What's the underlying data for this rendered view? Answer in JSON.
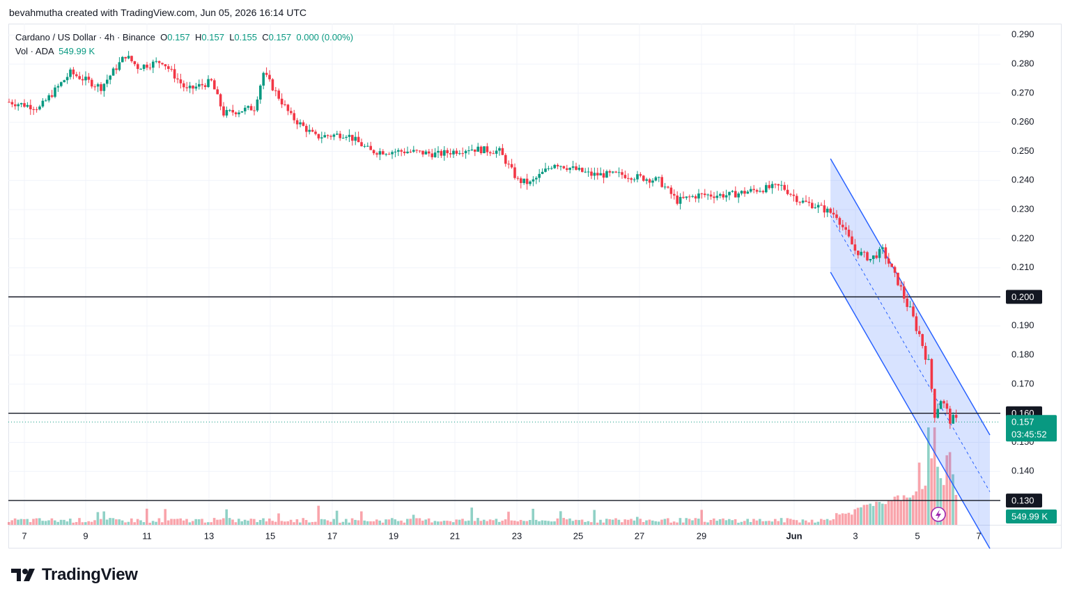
{
  "header": {
    "credit": "bevahmutha created with TradingView.com, Jun 05, 2026 16:14 UTC"
  },
  "legend": {
    "symbol": "Cardano / US Dollar · 4h · Binance",
    "o_label": "O",
    "o_value": "0.157",
    "h_label": "H",
    "h_value": "0.157",
    "l_label": "L",
    "l_value": "0.155",
    "c_label": "C",
    "c_value": "0.157",
    "change": "0.000 (0.00%)",
    "vol_label": "Vol · ADA",
    "vol_value": "549.99 K"
  },
  "price_axis": {
    "labels": [
      "0.290",
      "0.280",
      "0.270",
      "0.260",
      "0.250",
      "0.240",
      "0.230",
      "0.220",
      "0.210",
      "0.190",
      "0.180",
      "0.170",
      "0.140"
    ],
    "partial_label": "0.150"
  },
  "time_axis": {
    "labels": [
      "7",
      "9",
      "11",
      "13",
      "15",
      "17",
      "19",
      "21",
      "23",
      "25",
      "27",
      "29",
      "Jun",
      "3",
      "5",
      "7"
    ]
  },
  "horizontal_levels": [
    {
      "price": 0.2,
      "label": "0.200"
    },
    {
      "price": 0.16,
      "label": "0.160"
    },
    {
      "price": 0.13,
      "label": "0.130"
    }
  ],
  "current_price": {
    "price": 0.157,
    "label": "0.157",
    "countdown": "03:45:52"
  },
  "volume_badge": "549.99 K",
  "brand": {
    "name": "TradingView",
    "logo": "tradingview-logo-icon"
  },
  "colors": {
    "up": "#089981",
    "down": "#f23645",
    "channel": "#2962ff",
    "channel_fill": "rgba(41,98,255,0.18)",
    "level": "#131722"
  },
  "chart_data": {
    "type": "candlestick",
    "symbol": "Cardano / US Dollar",
    "interval": "4h",
    "exchange": "Binance",
    "ylim": [
      0.126,
      0.293
    ],
    "x_index_range": [
      0,
      320
    ],
    "grid": true,
    "candles": [],
    "close_path_estimate": [
      {
        "i": 0,
        "p": 0.267
      },
      {
        "i": 10,
        "p": 0.265
      },
      {
        "i": 20,
        "p": 0.277
      },
      {
        "i": 30,
        "p": 0.272
      },
      {
        "i": 38,
        "p": 0.283
      },
      {
        "i": 42,
        "p": 0.279
      },
      {
        "i": 50,
        "p": 0.281
      },
      {
        "i": 58,
        "p": 0.271
      },
      {
        "i": 66,
        "p": 0.274
      },
      {
        "i": 70,
        "p": 0.263
      },
      {
        "i": 80,
        "p": 0.265
      },
      {
        "i": 83,
        "p": 0.277
      },
      {
        "i": 92,
        "p": 0.262
      },
      {
        "i": 100,
        "p": 0.255
      },
      {
        "i": 110,
        "p": 0.256
      },
      {
        "i": 118,
        "p": 0.25
      },
      {
        "i": 130,
        "p": 0.25
      },
      {
        "i": 140,
        "p": 0.249
      },
      {
        "i": 150,
        "p": 0.251
      },
      {
        "i": 160,
        "p": 0.25
      },
      {
        "i": 166,
        "p": 0.24
      },
      {
        "i": 170,
        "p": 0.239
      },
      {
        "i": 178,
        "p": 0.246
      },
      {
        "i": 190,
        "p": 0.242
      },
      {
        "i": 200,
        "p": 0.242
      },
      {
        "i": 212,
        "p": 0.24
      },
      {
        "i": 218,
        "p": 0.233
      },
      {
        "i": 225,
        "p": 0.235
      },
      {
        "i": 235,
        "p": 0.235
      },
      {
        "i": 245,
        "p": 0.237
      },
      {
        "i": 252,
        "p": 0.238
      },
      {
        "i": 258,
        "p": 0.233
      },
      {
        "i": 264,
        "p": 0.231
      },
      {
        "i": 270,
        "p": 0.228
      },
      {
        "i": 276,
        "p": 0.216
      },
      {
        "i": 281,
        "p": 0.213
      },
      {
        "i": 285,
        "p": 0.216
      },
      {
        "i": 290,
        "p": 0.205
      },
      {
        "i": 294,
        "p": 0.195
      },
      {
        "i": 297,
        "p": 0.187
      },
      {
        "i": 300,
        "p": 0.177
      },
      {
        "i": 302,
        "p": 0.16
      },
      {
        "i": 304,
        "p": 0.165
      },
      {
        "i": 307,
        "p": 0.158
      },
      {
        "i": 309,
        "p": 0.157
      }
    ],
    "descending_channel": {
      "upper": [
        {
          "i": 268,
          "p": 0.2475
        },
        {
          "i": 320,
          "p": 0.1525
        }
      ],
      "lower": [
        {
          "i": 268,
          "p": 0.2085
        },
        {
          "i": 320,
          "p": 0.1135
        }
      ],
      "mid": [
        {
          "i": 268,
          "p": 0.228
        },
        {
          "i": 320,
          "p": 0.133
        }
      ]
    }
  }
}
